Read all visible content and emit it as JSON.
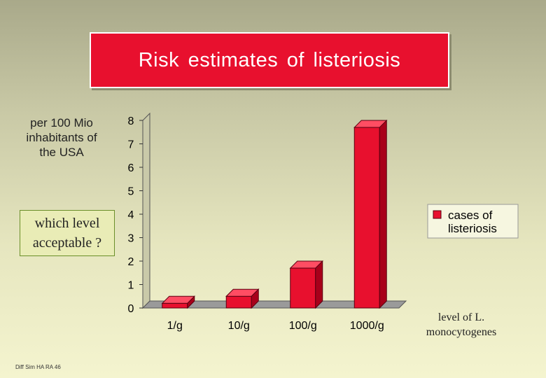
{
  "title": "Risk  estimates  of  listeriosis",
  "note": "per 100 Mio inhabitants of the USA",
  "question": "which level acceptable ?",
  "xlabel": "level of L. monocytogenes",
  "footer": "Diff Sim HA RA 46",
  "colors": {
    "bar": "#e8102e",
    "title_bg": "#e8102e"
  },
  "chart_data": {
    "type": "bar",
    "categories": [
      "1/g",
      "10/g",
      "100/g",
      "1000/g"
    ],
    "series": [
      {
        "name": "cases of listeriosis",
        "values": [
          0.2,
          0.5,
          1.7,
          7.7
        ]
      }
    ],
    "title": "Risk estimates of listeriosis",
    "xlabel": "level of L. monocytogenes",
    "ylabel": "",
    "ylim": [
      0,
      8
    ],
    "yticks": [
      0,
      1,
      2,
      3,
      4,
      5,
      6,
      7,
      8
    ],
    "grid": false,
    "legend": "right"
  }
}
